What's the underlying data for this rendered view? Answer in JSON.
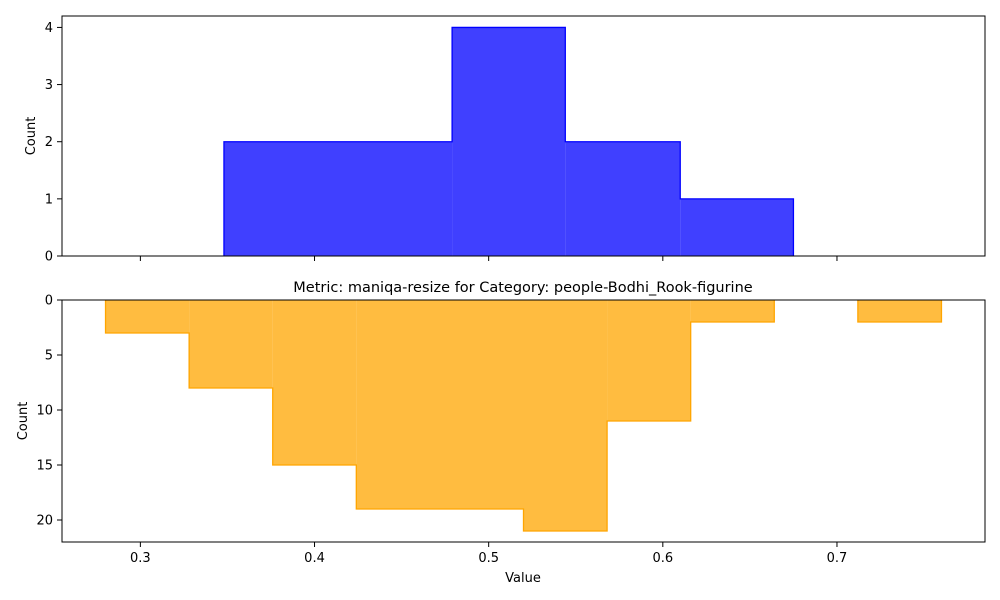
{
  "chart_data": [
    {
      "type": "histogram",
      "title": "",
      "xlabel": "",
      "ylabel": "Count",
      "xlim": [
        0.255,
        0.785
      ],
      "ylim": [
        0,
        4.2
      ],
      "yticks": [
        0,
        1,
        2,
        3,
        4
      ],
      "xticks": [
        0.3,
        0.4,
        0.5,
        0.6,
        0.7
      ],
      "show_xticklabels": false,
      "y_inverted": false,
      "color": "#0000ff",
      "bins": [
        {
          "x0": 0.348,
          "x1": 0.479,
          "count": 2
        },
        {
          "x0": 0.479,
          "x1": 0.544,
          "count": 4
        },
        {
          "x0": 0.544,
          "x1": 0.61,
          "count": 2
        },
        {
          "x0": 0.61,
          "x1": 0.675,
          "count": 1
        }
      ]
    },
    {
      "type": "histogram",
      "title": "Metric: maniqa-resize for Category: people-Bodhi_Rook-figurine",
      "xlabel": "Value",
      "ylabel": "Count",
      "xlim": [
        0.255,
        0.785
      ],
      "ylim": [
        0,
        22
      ],
      "yticks": [
        0,
        5,
        10,
        15,
        20
      ],
      "xticks": [
        0.3,
        0.4,
        0.5,
        0.6,
        0.7
      ],
      "xtick_labels": [
        "0.3",
        "0.4",
        "0.5",
        "0.6",
        "0.7"
      ],
      "show_xticklabels": true,
      "y_inverted": true,
      "color": "#ffa500",
      "bins": [
        {
          "x0": 0.28,
          "x1": 0.328,
          "count": 3
        },
        {
          "x0": 0.328,
          "x1": 0.376,
          "count": 8
        },
        {
          "x0": 0.376,
          "x1": 0.424,
          "count": 15
        },
        {
          "x0": 0.424,
          "x1": 0.52,
          "count": 19
        },
        {
          "x0": 0.52,
          "x1": 0.568,
          "count": 21
        },
        {
          "x0": 0.568,
          "x1": 0.616,
          "count": 11
        },
        {
          "x0": 0.616,
          "x1": 0.664,
          "count": 2
        },
        {
          "x0": 0.712,
          "x1": 0.76,
          "count": 2
        }
      ]
    }
  ]
}
